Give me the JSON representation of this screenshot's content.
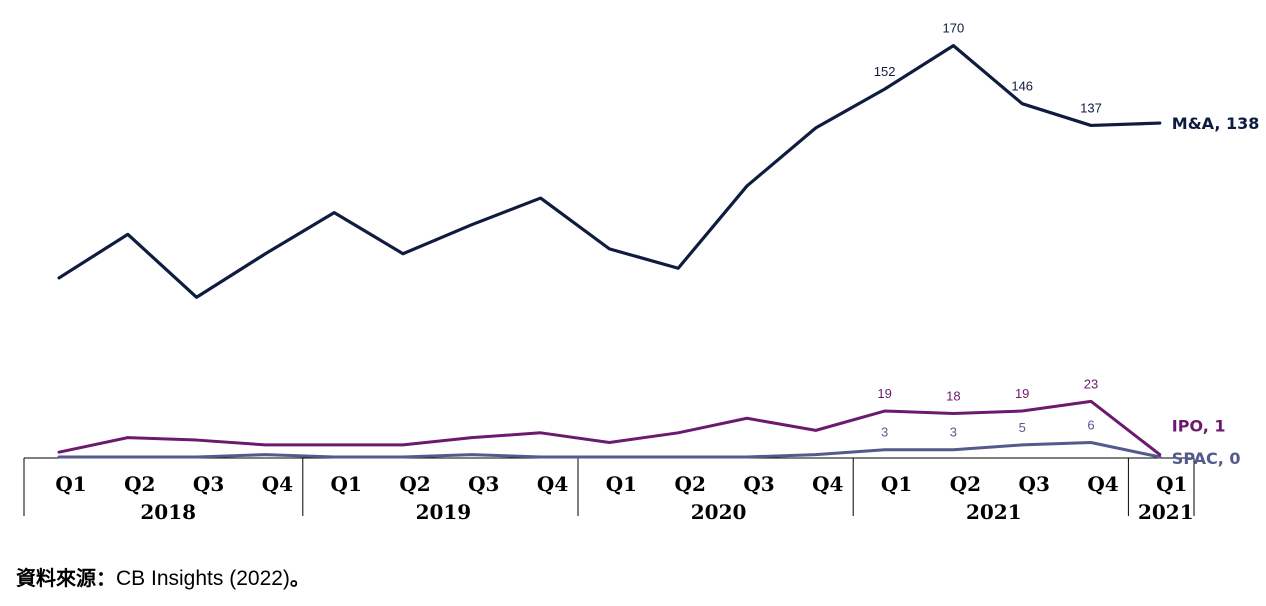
{
  "chart_data": {
    "type": "line",
    "title": "",
    "xlabel": "",
    "ylabel": "",
    "categories": [
      "Q1",
      "Q2",
      "Q3",
      "Q4",
      "Q1",
      "Q2",
      "Q3",
      "Q4",
      "Q1",
      "Q2",
      "Q3",
      "Q4",
      "Q1",
      "Q2",
      "Q3",
      "Q4",
      "Q1"
    ],
    "years": [
      {
        "label": "2018",
        "quarters": 4
      },
      {
        "label": "2019",
        "quarters": 4
      },
      {
        "label": "2020",
        "quarters": 4
      },
      {
        "label": "2021",
        "quarters": 4
      },
      {
        "label": "2021",
        "quarters": 1
      }
    ],
    "ylim": [
      0,
      180
    ],
    "grid": false,
    "series": [
      {
        "name": "M&A",
        "color": "#0f1c3f",
        "values": [
          74,
          92,
          66,
          84,
          101,
          84,
          96,
          107,
          86,
          78,
          112,
          136,
          152,
          170,
          146,
          137,
          138
        ],
        "data_labels": {
          "12": "152",
          "13": "170",
          "14": "146",
          "15": "137"
        },
        "end_label": "M&A, 138"
      },
      {
        "name": "IPO",
        "color": "#6b1a6e",
        "values": [
          2,
          8,
          7,
          5,
          5,
          5,
          8,
          10,
          6,
          10,
          16,
          11,
          19,
          18,
          19,
          23,
          1
        ],
        "data_labels": {
          "12": "19",
          "13": "18",
          "14": "19",
          "15": "23"
        },
        "end_label": "IPO, 1"
      },
      {
        "name": "SPAC",
        "color": "#545a8c",
        "values": [
          0,
          0,
          0,
          1,
          0,
          0,
          1,
          0,
          0,
          0,
          0,
          1,
          3,
          3,
          5,
          6,
          0
        ],
        "data_labels": {
          "12": "3",
          "13": "3",
          "14": "5",
          "15": "6"
        },
        "end_label": "SPAC, 0"
      }
    ]
  },
  "source": {
    "prefix": "資料來源：",
    "name": "CB Insights (2022)",
    "suffix": "。"
  }
}
